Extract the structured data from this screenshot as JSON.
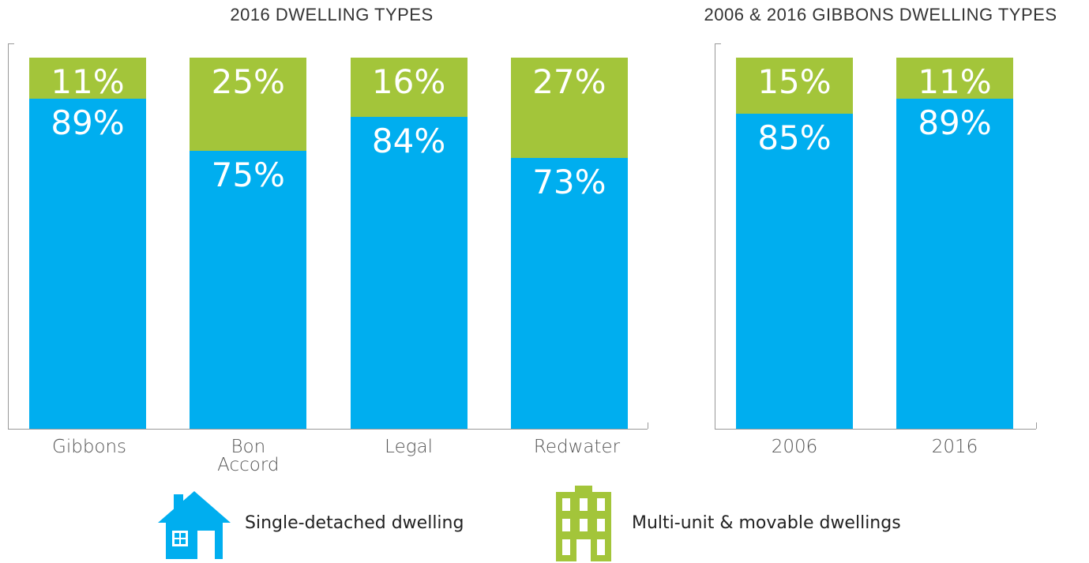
{
  "chart_data": [
    {
      "type": "stacked-bar",
      "title": "2016 DWELLING TYPES",
      "categories": [
        "Gibbons",
        "Bon Accord",
        "Legal",
        "Redwater"
      ],
      "ylim": [
        0,
        100
      ],
      "series": [
        {
          "name": "Single-detached dwelling",
          "color": "#00aeef",
          "values": [
            89,
            75,
            84,
            73
          ],
          "value_labels": [
            "89%",
            "75%",
            "84%",
            "73%"
          ]
        },
        {
          "name": "Multi-unit & movable dwellings",
          "color": "#a3c53a",
          "values": [
            11,
            25,
            16,
            27
          ],
          "value_labels": [
            "11%",
            "25%",
            "16%",
            "27%"
          ]
        }
      ]
    },
    {
      "type": "stacked-bar",
      "title": "2006 & 2016 GIBBONS DWELLING TYPES",
      "categories": [
        "2006",
        "2016"
      ],
      "ylim": [
        0,
        100
      ],
      "series": [
        {
          "color": "#00aeef",
          "values": [
            85,
            89
          ],
          "value_labels": [
            "85%",
            "89%"
          ]
        },
        {
          "color": "#a3c53a",
          "values": [
            15,
            11
          ],
          "value_labels": [
            "15%",
            "11%"
          ]
        }
      ]
    }
  ]
}
